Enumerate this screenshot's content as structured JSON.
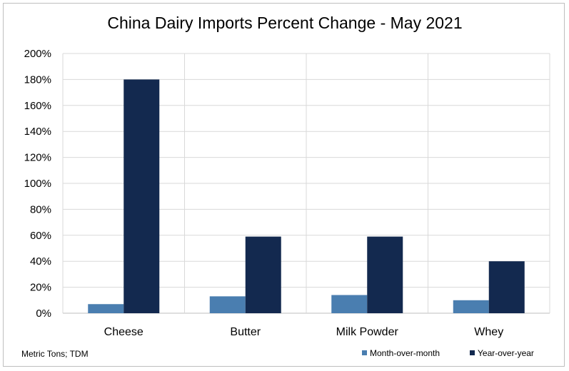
{
  "chart_data": {
    "type": "bar",
    "title": "China Dairy Imports Percent Change - May 2021",
    "categories": [
      "Cheese",
      "Butter",
      "Milk Powder",
      "Whey"
    ],
    "series": [
      {
        "name": "Month-over-month",
        "values": [
          0.07,
          0.13,
          0.14,
          0.1
        ],
        "color": "#4a7eb0"
      },
      {
        "name": "Year-over-year",
        "values": [
          1.8,
          0.59,
          0.59,
          0.4
        ],
        "color": "#13294f"
      }
    ],
    "ylim": [
      0,
      2.0
    ],
    "yticks": [
      "0%",
      "20%",
      "40%",
      "60%",
      "80%",
      "100%",
      "120%",
      "140%",
      "160%",
      "180%",
      "200%"
    ],
    "xlabel": "",
    "ylabel": "",
    "grid": true,
    "legend_position": "bottom-right",
    "source_note": "Metric Tons; TDM"
  }
}
